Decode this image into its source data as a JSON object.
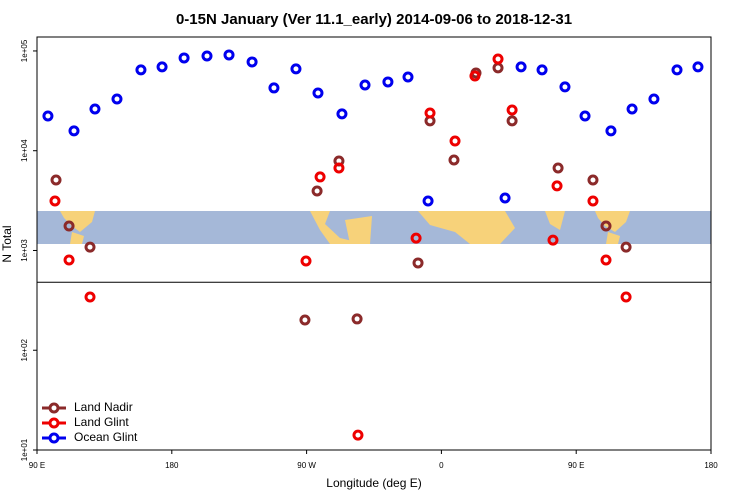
{
  "chart_data": {
    "type": "scatter",
    "title": "0-15N January (Ver 11.1_early)   2014-09-06 to 2018-12-31",
    "x_label": "Longitude (deg E)",
    "y_label": "N Total",
    "log_y": true,
    "legend": "bottom-left",
    "xlim": [
      90,
      540
    ],
    "ylim": [
      10,
      138000
    ],
    "xticks": [
      {
        "value": 90,
        "label": "90 E"
      },
      {
        "value": 180,
        "label": "180"
      },
      {
        "value": 270,
        "label": "90 W"
      },
      {
        "value": 360,
        "label": "0"
      },
      {
        "value": 450,
        "label": "90 E"
      },
      {
        "value": 540,
        "label": "180"
      }
    ],
    "yticks": [
      {
        "value": 10,
        "label": "1e+01"
      },
      {
        "value": 100,
        "label": "1e+02"
      },
      {
        "value": 1000,
        "label": "1e+03"
      },
      {
        "value": 10000,
        "label": "1e+04"
      },
      {
        "value": 100000,
        "label": "1e+05"
      }
    ],
    "reference_line": 480,
    "series": [
      {
        "name": "Land Nadir",
        "color": "#8b2a2a",
        "x": [
          102.7,
          111.4,
          125.4,
          268.9,
          277.0,
          291.6,
          303.7,
          344.4,
          352.4,
          368.4,
          383.1,
          397.8,
          407.2,
          437.9,
          461.2,
          469.9,
          483.3
        ],
        "values": [
          5090,
          1760,
          1080,
          201,
          3950,
          7890,
          206,
          750,
          19900,
          8070,
          60100,
          67600,
          19900,
          6710,
          5090,
          1760,
          1080
        ]
      },
      {
        "name": "Land Glint",
        "color": "#ee0000",
        "x": [
          102.0,
          111.4,
          125.4,
          269.6,
          279.0,
          291.6,
          304.3,
          343.1,
          352.4,
          369.1,
          382.4,
          397.8,
          407.2,
          434.5,
          437.2,
          461.2,
          469.9,
          483.3
        ],
        "values": [
          3130,
          803,
          342,
          785,
          5460,
          6710,
          14.1,
          1330,
          23900,
          12500,
          56100,
          83100,
          25600,
          1270,
          4440,
          3130,
          803,
          342
        ]
      },
      {
        "name": "Ocean Glint",
        "color": "#0000ee",
        "x": [
          97.3,
          114.7,
          128.7,
          143.4,
          159.4,
          173.5,
          188.2,
          203.5,
          218.2,
          233.6,
          248.2,
          262.9,
          277.6,
          293.6,
          309.0,
          324.3,
          337.7,
          351.1,
          402.5,
          413.2,
          427.2,
          442.5,
          455.9,
          473.2,
          487.3,
          501.9,
          517.3,
          531.3
        ],
        "values": [
          22300,
          15800,
          26200,
          33000,
          64600,
          69200,
          85100,
          89100,
          91200,
          77600,
          42600,
          66100,
          37900,
          23400,
          45600,
          48900,
          54800,
          3130,
          3360,
          69200,
          64600,
          43600,
          22300,
          15800,
          26200,
          33000,
          64600,
          69200
        ]
      }
    ]
  }
}
